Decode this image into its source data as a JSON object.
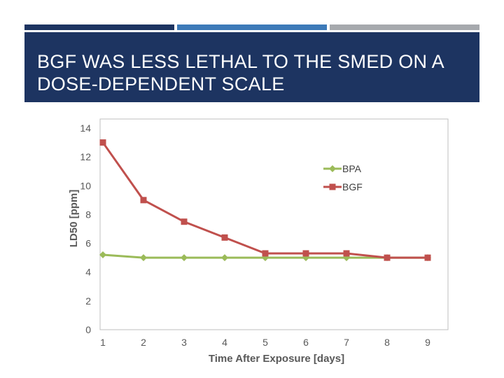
{
  "slide": {
    "title": "BGF WAS LESS LETHAL TO THE SMED ON A DOSE-DEPENDENT SCALE",
    "accent_colors": [
      "#1d3461",
      "#3d7ab8",
      "#a6a9ad"
    ],
    "title_band_color": "#1d3461"
  },
  "chart_data": {
    "type": "line",
    "title": "",
    "xlabel": "Time After Exposure [days]",
    "ylabel": "LD50 [ppm]",
    "categories": [
      "1",
      "2",
      "3",
      "4",
      "5",
      "6",
      "7",
      "8",
      "9"
    ],
    "x": [
      1,
      2,
      3,
      4,
      5,
      6,
      7,
      8,
      9
    ],
    "ylim": [
      0,
      14
    ],
    "yticks": [
      0,
      2,
      4,
      6,
      8,
      10,
      12,
      14
    ],
    "grid": false,
    "legend_position": "top-right",
    "series": [
      {
        "name": "BPA",
        "marker": "diamond",
        "color": "#9bbb59",
        "values": [
          5.2,
          5.0,
          5.0,
          5.0,
          5.0,
          5.0,
          5.0,
          5.0,
          5.0
        ]
      },
      {
        "name": "BGF",
        "marker": "square",
        "color": "#c0504d",
        "values": [
          13.0,
          9.0,
          7.5,
          6.4,
          5.3,
          5.3,
          5.3,
          5.0,
          5.0
        ]
      }
    ]
  }
}
